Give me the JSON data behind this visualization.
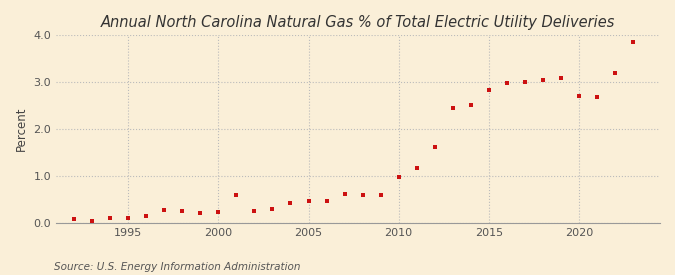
{
  "title": "Annual North Carolina Natural Gas % of Total Electric Utility Deliveries",
  "ylabel": "Percent",
  "source": "Source: U.S. Energy Information Administration",
  "background_color": "#faefd8",
  "plot_bg_color": "#faefd8",
  "marker_color": "#cc1111",
  "years": [
    1992,
    1993,
    1994,
    1995,
    1996,
    1997,
    1998,
    1999,
    2000,
    2001,
    2002,
    2003,
    2004,
    2005,
    2006,
    2007,
    2008,
    2009,
    2010,
    2011,
    2012,
    2013,
    2014,
    2015,
    2016,
    2017,
    2018,
    2019,
    2020,
    2021,
    2022,
    2023
  ],
  "values": [
    0.08,
    0.04,
    0.1,
    0.1,
    0.15,
    0.28,
    0.25,
    0.22,
    0.23,
    0.6,
    0.25,
    0.3,
    0.42,
    0.48,
    0.48,
    0.62,
    0.6,
    0.6,
    0.98,
    1.18,
    1.63,
    2.45,
    2.52,
    2.83,
    2.98,
    3.0,
    3.05,
    3.1,
    2.7,
    2.68,
    3.2,
    3.85
  ],
  "xlim": [
    1991.0,
    2024.5
  ],
  "ylim": [
    0.0,
    4.0
  ],
  "yticks": [
    0.0,
    1.0,
    2.0,
    3.0,
    4.0
  ],
  "xticks": [
    1995,
    2000,
    2005,
    2010,
    2015,
    2020
  ],
  "grid_color": "#bbbbbb",
  "title_fontsize": 10.5,
  "label_fontsize": 8.5,
  "tick_fontsize": 8,
  "source_fontsize": 7.5
}
